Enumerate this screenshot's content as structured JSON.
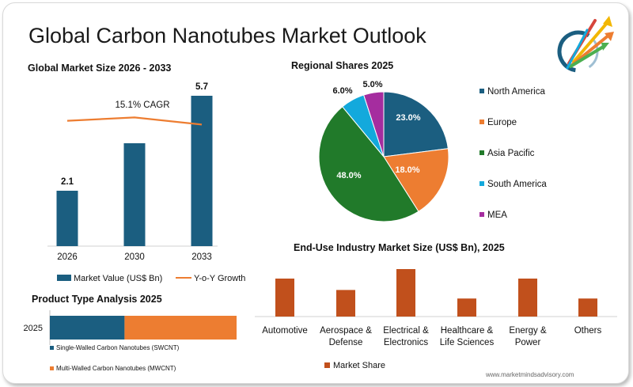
{
  "page": {
    "title": "Global Carbon Nanotubes Market Outlook",
    "credit": "www.marketmindsadvisory.com"
  },
  "colors": {
    "navy": "#1b5e80",
    "orange": "#ed7d31",
    "green": "#217a2a",
    "cyan": "#13a9dc",
    "magenta": "#a52d9f",
    "rust": "#c1501c"
  },
  "logo_icon": "arrow-burst-logo-icon",
  "chart_data": [
    {
      "id": "market_size",
      "type": "bar",
      "title": "Global Market Size 2026 - 2033",
      "categories": [
        "2026",
        "2030",
        "2033"
      ],
      "series": [
        {
          "name": "Market Value (US$ Bn)",
          "values": [
            2.1,
            3.9,
            5.7
          ],
          "data_labels": [
            "2.1",
            "",
            "5.7"
          ]
        },
        {
          "name": "Y-o-Y Growth",
          "type": "line",
          "values": [
            15.9,
            16.6,
            15.1
          ]
        }
      ],
      "annotation": "15.1% CAGR",
      "ylim": [
        0,
        5.7
      ],
      "grid": false,
      "legend": "bottom"
    },
    {
      "id": "regional_shares",
      "type": "pie",
      "title": "Regional Shares 2025",
      "slices": [
        {
          "label": "North America",
          "value": 23.0,
          "display": "23.0%",
          "color": "#1b5e80"
        },
        {
          "label": "Europe",
          "value": 18.0,
          "display": "18.0%",
          "color": "#ed7d31"
        },
        {
          "label": "Asia Pacific",
          "value": 48.0,
          "display": "48.0%",
          "color": "#217a2a"
        },
        {
          "label": "South America",
          "value": 6.0,
          "display": "6.0%",
          "color": "#13a9dc"
        },
        {
          "label": "MEA",
          "value": 5.0,
          "display": "5.0%",
          "color": "#a52d9f"
        }
      ],
      "legend": "right"
    },
    {
      "id": "product_type",
      "type": "bar",
      "orientation": "horizontal-stacked",
      "title": "Product Type Analysis 2025",
      "categories": [
        "2025"
      ],
      "series": [
        {
          "name": "Single-Walled Carbon Nanotubes (SWCNT)",
          "values": [
            40
          ],
          "color": "#1b5e80"
        },
        {
          "name": "Multi-Walled Carbon Nanotubes (MWCNT)",
          "values": [
            60
          ],
          "color": "#ed7d31"
        }
      ],
      "legend": "bottom"
    },
    {
      "id": "end_use",
      "type": "bar",
      "title": "End-Use Industry Market Size (US$ Bn), 2025",
      "categories": [
        [
          "Automotive"
        ],
        [
          "Aerospace &",
          "Defense"
        ],
        [
          "Electrical &",
          "Electronics"
        ],
        [
          "Healthcare &",
          "Life Sciences"
        ],
        [
          "Energy &",
          "Power"
        ],
        [
          "Others"
        ]
      ],
      "series": [
        {
          "name": "Market Share",
          "values": [
            4,
            2.8,
            5,
            1.9,
            4,
            1.9
          ],
          "color": "#c1501c"
        }
      ],
      "grid": false,
      "legend": "bottom"
    }
  ]
}
